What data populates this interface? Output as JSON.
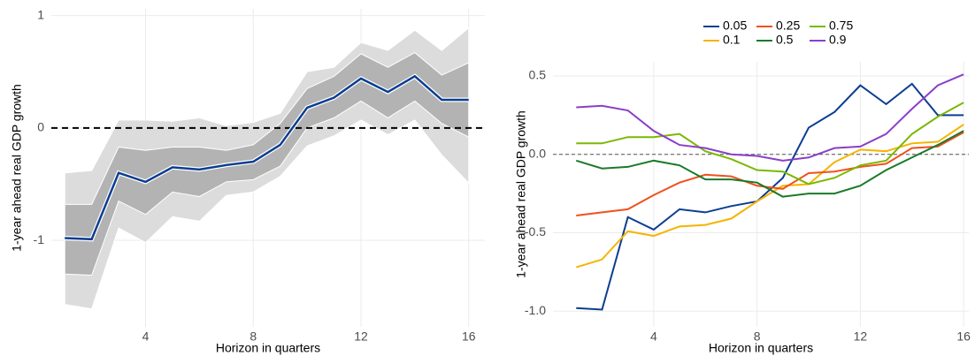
{
  "chart_data": [
    {
      "type": "line",
      "ylabel": "1-year ahead real GDP growth",
      "xlabel": "Horizon in quarters",
      "x": [
        1,
        2,
        3,
        4,
        5,
        6,
        7,
        8,
        9,
        10,
        11,
        12,
        13,
        14,
        15,
        16
      ],
      "values": [
        -0.98,
        -0.99,
        -0.4,
        -0.48,
        -0.35,
        -0.37,
        -0.33,
        -0.3,
        -0.15,
        0.18,
        0.27,
        0.44,
        0.32,
        0.46,
        0.25,
        0.25
      ],
      "color": "#0b3d91",
      "bands": [
        {
          "upper": [
            -0.4,
            -0.38,
            0.07,
            0.07,
            0.06,
            0.09,
            0.02,
            0.05,
            0.13,
            0.5,
            0.54,
            0.76,
            0.69,
            0.87,
            0.69,
            0.89
          ],
          "lower": [
            -1.57,
            -1.61,
            -0.89,
            -1.02,
            -0.79,
            -0.83,
            -0.6,
            -0.57,
            -0.43,
            -0.16,
            -0.07,
            0.07,
            -0.06,
            0.07,
            -0.24,
            -0.49
          ],
          "color": "#dcdcdc"
        },
        {
          "upper": [
            -0.68,
            -0.68,
            -0.17,
            -0.2,
            -0.17,
            -0.17,
            -0.2,
            -0.15,
            0.04,
            0.35,
            0.46,
            0.66,
            0.54,
            0.67,
            0.47,
            0.58
          ],
          "lower": [
            -1.3,
            -1.31,
            -0.65,
            -0.77,
            -0.57,
            -0.61,
            -0.48,
            -0.46,
            -0.34,
            0.0,
            0.09,
            0.24,
            0.09,
            0.24,
            0.04,
            -0.08
          ],
          "color": "#b3b3b3"
        }
      ],
      "reference_line": {
        "value": 0,
        "style": "dashed",
        "color": "#000000"
      },
      "xlim": [
        0.5,
        16.6
      ],
      "ylim": [
        -1.77,
        1.06
      ],
      "xticks": [
        4,
        8,
        12,
        16
      ],
      "yticks": [
        -1,
        0,
        1
      ],
      "grid": true
    },
    {
      "type": "line",
      "ylabel": "1-year ahead real GDP growth",
      "xlabel": "Horizon in quarters",
      "x": [
        1,
        2,
        3,
        4,
        5,
        6,
        7,
        8,
        9,
        10,
        11,
        12,
        13,
        14,
        15,
        16
      ],
      "series": [
        {
          "name": "0.05",
          "color": "#0b3d91",
          "values": [
            -0.98,
            -0.99,
            -0.4,
            -0.48,
            -0.35,
            -0.37,
            -0.33,
            -0.3,
            -0.15,
            0.17,
            0.27,
            0.44,
            0.32,
            0.45,
            0.25,
            0.25
          ]
        },
        {
          "name": "0.1",
          "color": "#f5b400",
          "values": [
            -0.72,
            -0.67,
            -0.49,
            -0.52,
            -0.46,
            -0.45,
            -0.41,
            -0.3,
            -0.2,
            -0.19,
            -0.05,
            0.03,
            0.02,
            0.07,
            0.08,
            0.19
          ]
        },
        {
          "name": "0.25",
          "color": "#f0501e",
          "values": [
            -0.39,
            -0.37,
            -0.35,
            -0.26,
            -0.18,
            -0.13,
            -0.14,
            -0.2,
            -0.22,
            -0.12,
            -0.11,
            -0.08,
            -0.06,
            0.04,
            0.05,
            0.14
          ]
        },
        {
          "name": "0.5",
          "color": "#1a7a2a",
          "values": [
            -0.04,
            -0.09,
            -0.08,
            -0.04,
            -0.07,
            -0.16,
            -0.16,
            -0.18,
            -0.27,
            -0.25,
            -0.25,
            -0.2,
            -0.1,
            -0.02,
            0.06,
            0.15
          ]
        },
        {
          "name": "0.75",
          "color": "#7ab800",
          "values": [
            0.07,
            0.07,
            0.11,
            0.11,
            0.13,
            0.02,
            -0.03,
            -0.1,
            -0.11,
            -0.19,
            -0.15,
            -0.07,
            -0.04,
            0.13,
            0.24,
            0.33
          ]
        },
        {
          "name": "0.9",
          "color": "#8a3fc8",
          "values": [
            0.3,
            0.31,
            0.28,
            0.15,
            0.06,
            0.04,
            0.0,
            -0.01,
            -0.04,
            -0.02,
            0.04,
            0.05,
            0.13,
            0.29,
            0.44,
            0.51
          ]
        }
      ],
      "legend": "top",
      "reference_line": {
        "value": 0,
        "style": "dashed",
        "color": "#555555"
      },
      "xlim": [
        0.1,
        16.2
      ],
      "ylim": [
        -1.1,
        0.59
      ],
      "xticks": [
        4,
        8,
        12,
        16
      ],
      "yticks": [
        {
          "value": -1,
          "label": "-1.0"
        },
        -0.5,
        {
          "value": 0,
          "label": "0.0"
        },
        0.5
      ],
      "grid": true
    }
  ]
}
